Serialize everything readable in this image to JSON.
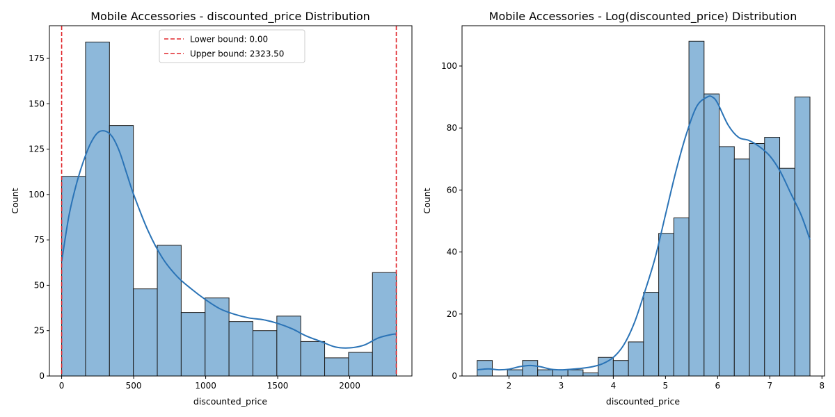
{
  "colors": {
    "bar_fill": "#8db8da",
    "bar_edge": "#1a1a1a",
    "kde_line": "#2a73b6",
    "bound_line": "#e0262b"
  },
  "chart_data": [
    {
      "type": "bar",
      "title": "Mobile Accessories - discounted_price Distribution",
      "xlabel": "discounted_price",
      "ylabel": "Count",
      "xlim": [
        -85,
        2432
      ],
      "ylim": [
        0,
        193
      ],
      "xticks": [
        0,
        500,
        1000,
        1500,
        2000
      ],
      "yticks": [
        0,
        25,
        50,
        75,
        100,
        125,
        150,
        175
      ],
      "bin_edges": [
        0,
        166,
        332,
        498,
        664,
        830,
        996,
        1162,
        1328,
        1494,
        1660,
        1826,
        1992,
        2158,
        2324
      ],
      "counts": [
        110,
        184,
        138,
        48,
        72,
        35,
        43,
        30,
        25,
        33,
        19,
        10,
        13,
        57
      ],
      "kde": {
        "x": [
          0,
          50,
          100,
          150,
          200,
          250,
          300,
          350,
          400,
          450,
          500,
          600,
          700,
          800,
          900,
          1000,
          1100,
          1200,
          1300,
          1400,
          1500,
          1600,
          1700,
          1800,
          1900,
          2000,
          2100,
          2200,
          2300,
          2324
        ],
        "y": [
          63,
          88,
          105,
          118,
          128,
          134,
          135,
          132,
          124,
          112,
          100,
          80,
          65,
          55,
          48,
          42,
          37,
          34,
          32,
          31,
          29,
          26,
          22,
          19,
          16,
          15.5,
          17,
          21,
          23,
          23
        ]
      },
      "legend": {
        "position": "upper-center",
        "entries": [
          "Lower bound: 0.00",
          "Upper bound: 2323.50"
        ]
      },
      "vlines": [
        {
          "x": 0,
          "label": "Lower bound: 0.00"
        },
        {
          "x": 2323.5,
          "label": "Upper bound: 2323.50"
        }
      ]
    },
    {
      "type": "bar",
      "title": "Mobile Accessories - Log(discounted_price) Distribution",
      "xlabel": "discounted_price",
      "ylabel": "Count",
      "xlim": [
        1.1,
        8.05
      ],
      "ylim": [
        0,
        113
      ],
      "xticks": [
        2,
        3,
        4,
        5,
        6,
        7,
        8
      ],
      "yticks": [
        0,
        20,
        40,
        60,
        80,
        100
      ],
      "bin_edges": [
        1.39,
        1.68,
        1.97,
        2.26,
        2.55,
        2.84,
        3.13,
        3.42,
        3.71,
        4.0,
        4.29,
        4.58,
        4.87,
        5.16,
        5.45,
        5.74,
        6.03,
        6.32,
        6.61,
        6.9,
        7.19,
        7.48,
        7.77
      ],
      "counts": [
        5,
        0,
        2,
        5,
        2,
        2,
        2,
        1,
        6,
        5,
        11,
        27,
        46,
        51,
        108,
        91,
        74,
        70,
        75,
        77,
        67,
        90
      ],
      "kde": {
        "x": [
          1.39,
          1.6,
          1.8,
          2.0,
          2.2,
          2.4,
          2.6,
          2.8,
          3.0,
          3.2,
          3.4,
          3.6,
          3.8,
          4.0,
          4.2,
          4.4,
          4.6,
          4.8,
          5.0,
          5.2,
          5.4,
          5.6,
          5.8,
          5.9,
          6.0,
          6.2,
          6.4,
          6.6,
          6.8,
          7.0,
          7.2,
          7.4,
          7.6,
          7.77
        ],
        "y": [
          2,
          2.3,
          2,
          2.2,
          3,
          3.4,
          3,
          2.2,
          2,
          2.2,
          2.5,
          3,
          4,
          6,
          10,
          17,
          27,
          38,
          52,
          66,
          78,
          87,
          90,
          90,
          88,
          81,
          77,
          76,
          74,
          71,
          66,
          59,
          52,
          44
        ]
      }
    }
  ]
}
